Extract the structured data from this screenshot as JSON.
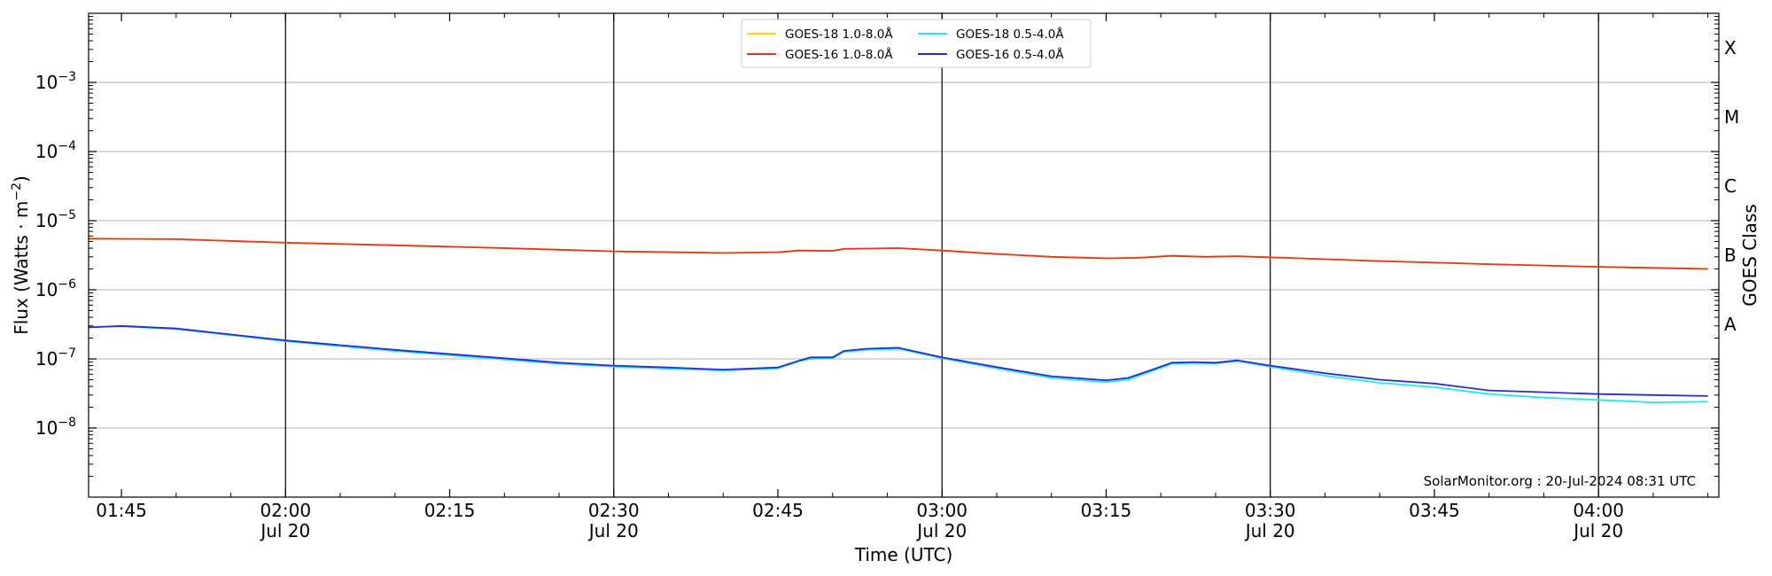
{
  "chart_data": {
    "type": "line",
    "title": "",
    "xlabel": "Time (UTC)",
    "ylabel": "Flux (Watts · m",
    "ylabel_sup": "−2",
    "ylabel_close": ")",
    "right_label": "GOES Class",
    "y_scale": "log",
    "ylim": [
      "1e-9",
      "1e-2"
    ],
    "x_range": [
      "01:42",
      "04:11"
    ],
    "grid": "horizontal",
    "legend_position": "top-center",
    "annotation": "SolarMonitor.org : 20-Jul-2024 08:31 UTC",
    "x_ticks": [
      {
        "t": "01:45",
        "label": "01:45",
        "sub": ""
      },
      {
        "t": "02:00",
        "label": "02:00",
        "sub": "Jul 20"
      },
      {
        "t": "02:15",
        "label": "02:15",
        "sub": ""
      },
      {
        "t": "02:30",
        "label": "02:30",
        "sub": "Jul 20"
      },
      {
        "t": "02:45",
        "label": "02:45",
        "sub": ""
      },
      {
        "t": "03:00",
        "label": "03:00",
        "sub": "Jul 20"
      },
      {
        "t": "03:15",
        "label": "03:15",
        "sub": ""
      },
      {
        "t": "03:30",
        "label": "03:30",
        "sub": "Jul 20"
      },
      {
        "t": "03:45",
        "label": "03:45",
        "sub": ""
      },
      {
        "t": "04:00",
        "label": "04:00",
        "sub": "Jul 20"
      }
    ],
    "y_ticks": [
      {
        "exp": -8,
        "base": "10",
        "sup": "−8"
      },
      {
        "exp": -7,
        "base": "10",
        "sup": "−7"
      },
      {
        "exp": -6,
        "base": "10",
        "sup": "−6"
      },
      {
        "exp": -5,
        "base": "10",
        "sup": "−5"
      },
      {
        "exp": -4,
        "base": "10",
        "sup": "−4"
      },
      {
        "exp": -3,
        "base": "10",
        "sup": "−3"
      }
    ],
    "classes": [
      {
        "label": "A",
        "exp": -7
      },
      {
        "label": "B",
        "exp": -6
      },
      {
        "label": "C",
        "exp": -5
      },
      {
        "label": "M",
        "exp": -4
      },
      {
        "label": "X",
        "exp": -3
      }
    ],
    "series": [
      {
        "name": "GOES-18 1.0-8.0Å",
        "color": "#ffd700",
        "legend_col": 0,
        "legend_row": 0,
        "points": [
          [
            "01:42",
            "5.5e-6"
          ],
          [
            "01:50",
            "5.4e-6"
          ],
          [
            "02:00",
            "4.8e-6"
          ],
          [
            "02:10",
            "4.4e-6"
          ],
          [
            "02:20",
            "4.0e-6"
          ],
          [
            "02:30",
            "3.6e-6"
          ],
          [
            "02:40",
            "3.4e-6"
          ],
          [
            "02:45",
            "3.5e-6"
          ],
          [
            "02:47",
            "3.7e-6"
          ],
          [
            "02:50",
            "3.65e-6"
          ],
          [
            "02:51",
            "3.9e-6"
          ],
          [
            "02:56",
            "4.0e-6"
          ],
          [
            "03:00",
            "3.7e-6"
          ],
          [
            "03:05",
            "3.3e-6"
          ],
          [
            "03:10",
            "3.0e-6"
          ],
          [
            "03:15",
            "2.85e-6"
          ],
          [
            "03:18",
            "2.9e-6"
          ],
          [
            "03:21",
            "3.1e-6"
          ],
          [
            "03:24",
            "3.0e-6"
          ],
          [
            "03:27",
            "3.05e-6"
          ],
          [
            "03:30",
            "2.95e-6"
          ],
          [
            "03:40",
            "2.6e-6"
          ],
          [
            "03:50",
            "2.35e-6"
          ],
          [
            "04:00",
            "2.15e-6"
          ],
          [
            "04:10",
            "2.0e-6"
          ]
        ]
      },
      {
        "name": "GOES-16 1.0-8.0Å",
        "color": "#e8341a",
        "legend_col": 0,
        "legend_row": 1,
        "points": [
          [
            "01:42",
            "5.5e-6"
          ],
          [
            "01:50",
            "5.4e-6"
          ],
          [
            "02:00",
            "4.8e-6"
          ],
          [
            "02:10",
            "4.4e-6"
          ],
          [
            "02:20",
            "4.0e-6"
          ],
          [
            "02:30",
            "3.6e-6"
          ],
          [
            "02:40",
            "3.4e-6"
          ],
          [
            "02:45",
            "3.5e-6"
          ],
          [
            "02:47",
            "3.7e-6"
          ],
          [
            "02:50",
            "3.65e-6"
          ],
          [
            "02:51",
            "3.9e-6"
          ],
          [
            "02:56",
            "4.0e-6"
          ],
          [
            "03:00",
            "3.7e-6"
          ],
          [
            "03:05",
            "3.3e-6"
          ],
          [
            "03:10",
            "3.0e-6"
          ],
          [
            "03:15",
            "2.85e-6"
          ],
          [
            "03:18",
            "2.9e-6"
          ],
          [
            "03:21",
            "3.1e-6"
          ],
          [
            "03:24",
            "3.0e-6"
          ],
          [
            "03:27",
            "3.05e-6"
          ],
          [
            "03:30",
            "2.95e-6"
          ],
          [
            "03:40",
            "2.6e-6"
          ],
          [
            "03:50",
            "2.35e-6"
          ],
          [
            "04:00",
            "2.15e-6"
          ],
          [
            "04:10",
            "2.0e-6"
          ]
        ]
      },
      {
        "name": "GOES-18 0.5-4.0Å",
        "color": "#22e8f0",
        "legend_col": 1,
        "legend_row": 0,
        "points": [
          [
            "01:42",
            "2.9e-7"
          ],
          [
            "01:45",
            "2.95e-7"
          ],
          [
            "01:50",
            "2.7e-7"
          ],
          [
            "02:00",
            "1.8e-7"
          ],
          [
            "02:10",
            "1.3e-7"
          ],
          [
            "02:20",
            "9.8e-8"
          ],
          [
            "02:25",
            "8.5e-8"
          ],
          [
            "02:30",
            "7.7e-8"
          ],
          [
            "02:35",
            "7.2e-8"
          ],
          [
            "02:40",
            "6.8e-8"
          ],
          [
            "02:45",
            "7.3e-8"
          ],
          [
            "02:47",
            "9.3e-8"
          ],
          [
            "02:48",
            "1.0e-7"
          ],
          [
            "02:50",
            "1.02e-7"
          ],
          [
            "02:51",
            "1.25e-7"
          ],
          [
            "02:53",
            "1.35e-7"
          ],
          [
            "02:56",
            "1.4e-7"
          ],
          [
            "03:00",
            "1.02e-7"
          ],
          [
            "03:05",
            "7.3e-8"
          ],
          [
            "03:10",
            "5.3e-8"
          ],
          [
            "03:15",
            "4.6e-8"
          ],
          [
            "03:17",
            "5.0e-8"
          ],
          [
            "03:19",
            "6.5e-8"
          ],
          [
            "03:21",
            "8.5e-8"
          ],
          [
            "03:23",
            "8.7e-8"
          ],
          [
            "03:25",
            "8.6e-8"
          ],
          [
            "03:27",
            "9.3e-8"
          ],
          [
            "03:30",
            "7.7e-8"
          ],
          [
            "03:35",
            "5.7e-8"
          ],
          [
            "03:40",
            "4.5e-8"
          ],
          [
            "03:45",
            "3.9e-8"
          ],
          [
            "03:50",
            "3.1e-8"
          ],
          [
            "03:55",
            "2.75e-8"
          ],
          [
            "04:00",
            "2.55e-8"
          ],
          [
            "04:05",
            "2.35e-8"
          ],
          [
            "04:10",
            "2.4e-8"
          ]
        ]
      },
      {
        "name": "GOES-16 0.5-4.0Å",
        "color": "#2a2ad6",
        "legend_col": 1,
        "legend_row": 1,
        "points": [
          [
            "01:42",
            "2.85e-7"
          ],
          [
            "01:45",
            "3.0e-7"
          ],
          [
            "01:50",
            "2.75e-7"
          ],
          [
            "02:00",
            "1.85e-7"
          ],
          [
            "02:10",
            "1.35e-7"
          ],
          [
            "02:20",
            "1.02e-7"
          ],
          [
            "02:25",
            "8.8e-8"
          ],
          [
            "02:30",
            "8.0e-8"
          ],
          [
            "02:35",
            "7.5e-8"
          ],
          [
            "02:40",
            "7.0e-8"
          ],
          [
            "02:45",
            "7.5e-8"
          ],
          [
            "02:47",
            "9.5e-8"
          ],
          [
            "02:48",
            "1.05e-7"
          ],
          [
            "02:50",
            "1.05e-7"
          ],
          [
            "02:51",
            "1.3e-7"
          ],
          [
            "02:53",
            "1.4e-7"
          ],
          [
            "02:56",
            "1.45e-7"
          ],
          [
            "03:00",
            "1.05e-7"
          ],
          [
            "03:05",
            "7.6e-8"
          ],
          [
            "03:10",
            "5.6e-8"
          ],
          [
            "03:15",
            "4.9e-8"
          ],
          [
            "03:17",
            "5.3e-8"
          ],
          [
            "03:19",
            "6.8e-8"
          ],
          [
            "03:21",
            "8.8e-8"
          ],
          [
            "03:23",
            "9.0e-8"
          ],
          [
            "03:25",
            "8.8e-8"
          ],
          [
            "03:27",
            "9.5e-8"
          ],
          [
            "03:30",
            "8.0e-8"
          ],
          [
            "03:35",
            "6.2e-8"
          ],
          [
            "03:40",
            "5.0e-8"
          ],
          [
            "03:45",
            "4.4e-8"
          ],
          [
            "03:50",
            "3.5e-8"
          ],
          [
            "03:55",
            "3.3e-8"
          ],
          [
            "04:00",
            "3.1e-8"
          ],
          [
            "04:05",
            "3.0e-8"
          ],
          [
            "04:10",
            "2.9e-8"
          ]
        ]
      }
    ]
  }
}
